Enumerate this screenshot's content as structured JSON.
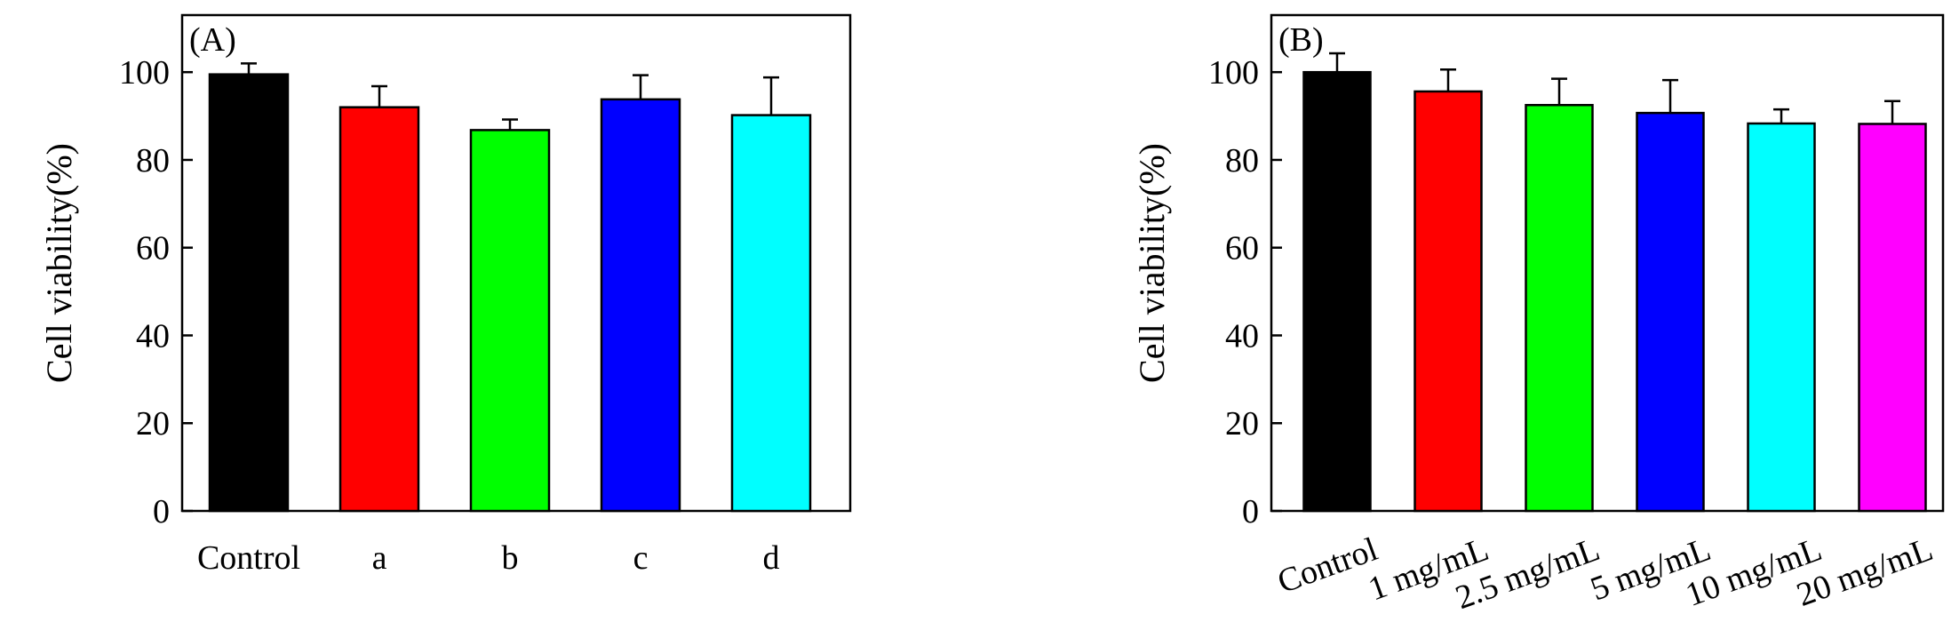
{
  "chart_data": [
    {
      "type": "bar",
      "panel_label": "(A)",
      "ylabel": "Cell viability(%)",
      "xlabel": "",
      "ylim": [
        0,
        113
      ],
      "yticks": [
        0,
        20,
        40,
        60,
        80,
        100
      ],
      "ytick_labels": [
        "0",
        "20",
        "40",
        "60",
        "80",
        "100"
      ],
      "categories": [
        "Control",
        "a",
        "b",
        "c",
        "d"
      ],
      "values": [
        99.5,
        92.0,
        86.8,
        93.8,
        90.2
      ],
      "errors": [
        2.5,
        4.8,
        2.4,
        5.5,
        8.6
      ],
      "colors": [
        "#000000",
        "#ff0000",
        "#00ff00",
        "#0000ff",
        "#00ffff"
      ],
      "grid": false,
      "legend": "none"
    },
    {
      "type": "bar",
      "panel_label": "(B)",
      "ylabel": "Cell viability(%)",
      "xlabel": "",
      "ylim": [
        0,
        113
      ],
      "yticks": [
        0,
        20,
        40,
        60,
        80,
        100
      ],
      "ytick_labels": [
        "0",
        "20",
        "40",
        "60",
        "80",
        "100"
      ],
      "categories": [
        "Control",
        "1 mg/mL",
        "2.5 mg/mL",
        "5 mg/mL",
        "10 mg/mL",
        "20 mg/mL"
      ],
      "values": [
        100.0,
        95.6,
        92.5,
        90.7,
        88.3,
        88.2
      ],
      "errors": [
        4.3,
        5.0,
        6.0,
        7.5,
        3.2,
        5.2
      ],
      "colors": [
        "#000000",
        "#ff0000",
        "#00ff00",
        "#0000ff",
        "#00ffff",
        "#ff00ff"
      ],
      "grid": false,
      "legend": "none",
      "tick_label_rotation": -20
    }
  ]
}
